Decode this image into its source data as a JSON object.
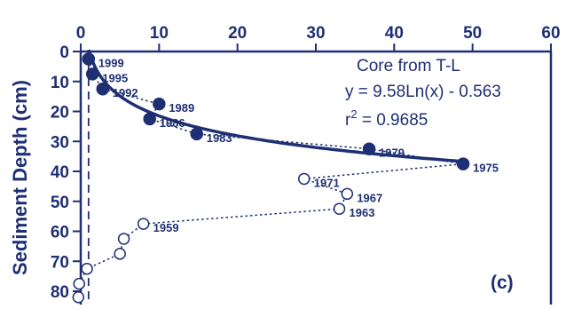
{
  "chart_data": {
    "type": "scatter",
    "title": "",
    "xlabel": "",
    "ylabel": "Sediment Depth (cm)",
    "xlim": [
      0,
      60
    ],
    "ylim": [
      0,
      85
    ],
    "y_inverted": true,
    "x_axis_position": "top",
    "x_ticks": [
      0,
      10,
      20,
      30,
      40,
      50,
      60
    ],
    "y_ticks": [
      0,
      10,
      20,
      30,
      40,
      50,
      60,
      70,
      80
    ],
    "grid": false,
    "colors": {
      "axis": "#1f2f73",
      "series": "#1f2f73"
    },
    "series": [
      {
        "marker": "filled-circle",
        "points": [
          {
            "x": 1.0,
            "y": 2.5,
            "label": "1999"
          },
          {
            "x": 1.5,
            "y": 7.5,
            "label": "1995"
          },
          {
            "x": 2.8,
            "y": 12.5,
            "label": "1992"
          },
          {
            "x": 10.0,
            "y": 17.5,
            "label": "1989"
          },
          {
            "x": 8.8,
            "y": 22.5,
            "label": "1986"
          },
          {
            "x": 14.8,
            "y": 27.5,
            "label": "1983"
          },
          {
            "x": 36.8,
            "y": 32.5,
            "label": "1979"
          },
          {
            "x": 48.8,
            "y": 37.5,
            "label": "1975"
          }
        ]
      },
      {
        "marker": "open-circle",
        "points": [
          {
            "x": 28.5,
            "y": 42.5,
            "label": "1971"
          },
          {
            "x": 34.0,
            "y": 47.5,
            "label": "1967"
          },
          {
            "x": 33.0,
            "y": 52.5,
            "label": "1963"
          },
          {
            "x": 8.0,
            "y": 57.5,
            "label": "1959"
          },
          {
            "x": 5.5,
            "y": 62.5,
            "label": ""
          },
          {
            "x": 5.0,
            "y": 67.5,
            "label": ""
          },
          {
            "x": 0.8,
            "y": 72.5,
            "label": ""
          },
          {
            "x": -0.2,
            "y": 77.5,
            "label": ""
          },
          {
            "x": -0.3,
            "y": 82.0,
            "label": ""
          }
        ]
      }
    ],
    "fit": {
      "label": "Core from T-L",
      "a": 9.58,
      "b": -0.563,
      "equation": "y = 9.58Ln(x) - 0.563",
      "r2_prefix": "r",
      "r2_value": " = 0.9685"
    },
    "vertical_dashed_x": 1,
    "panel_label": "(c)"
  }
}
